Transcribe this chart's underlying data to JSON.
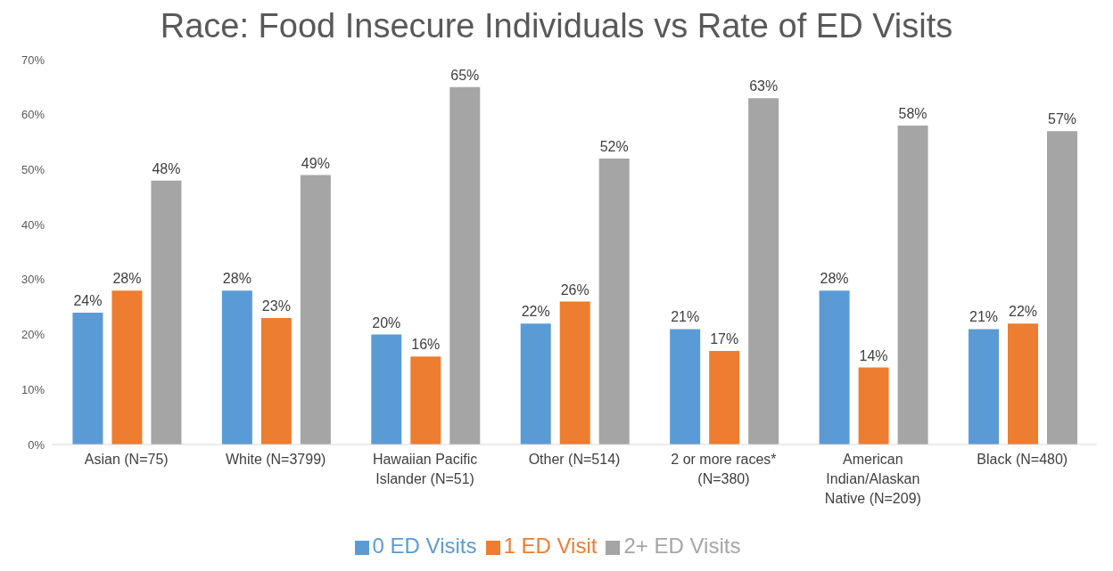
{
  "chart_data": {
    "type": "bar",
    "title": "Race: Food Insecure Individuals vs Rate of ED Visits",
    "categories": [
      "Asian (N=75)",
      "White (N=3799)",
      "Hawaiian Pacific Islander (N=51)",
      "Other (N=514)",
      "2 or more races* (N=380)",
      "American Indian/Alaskan Native (N=209)",
      "Black (N=480)"
    ],
    "series": [
      {
        "name": "0 ED Visits",
        "color": "#5b9bd5",
        "values": [
          24,
          28,
          20,
          22,
          21,
          28,
          21
        ]
      },
      {
        "name": "1 ED Visit",
        "color": "#ed7d31",
        "values": [
          28,
          23,
          16,
          26,
          17,
          14,
          22
        ]
      },
      {
        "name": "2+ ED Visits",
        "color": "#a5a5a5",
        "values": [
          48,
          49,
          65,
          52,
          63,
          58,
          57
        ]
      }
    ],
    "value_labels": [
      [
        "24%",
        "28%",
        "20%",
        "22%",
        "21%",
        "28%",
        "21%"
      ],
      [
        "28%",
        "23%",
        "16%",
        "26%",
        "17%",
        "14%",
        "22%"
      ],
      [
        "48%",
        "49%",
        "65%",
        "52%",
        "63%",
        "58%",
        "57%"
      ]
    ],
    "ylim": [
      0,
      70
    ],
    "yticks": [
      {
        "value": 0,
        "label": "0%"
      },
      {
        "value": 10,
        "label": "10%"
      },
      {
        "value": 20,
        "label": "20%"
      },
      {
        "value": 30,
        "label": "30%"
      },
      {
        "value": 40,
        "label": "40%"
      },
      {
        "value": 50,
        "label": "50%"
      },
      {
        "value": 60,
        "label": "60%"
      },
      {
        "value": 70,
        "label": "70%"
      }
    ],
    "grid": false,
    "legend": "bottom"
  }
}
